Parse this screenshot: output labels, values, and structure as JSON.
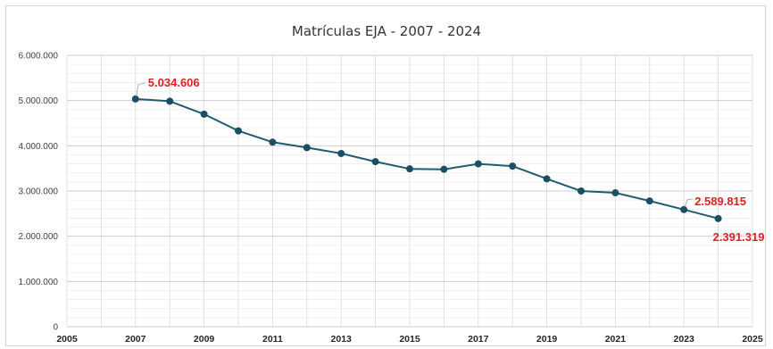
{
  "chart_data": {
    "type": "line",
    "title": "Matrículas EJA - 2007 - 2024",
    "xlabel": "",
    "ylabel": "",
    "xlim": [
      2005,
      2025
    ],
    "ylim": [
      0,
      6000000
    ],
    "x_ticks": [
      2005,
      2007,
      2009,
      2011,
      2013,
      2015,
      2017,
      2019,
      2021,
      2023,
      2025
    ],
    "x_tick_labels": [
      "2005",
      "2007",
      "2009",
      "2011",
      "2013",
      "2015",
      "2017",
      "2019",
      "2021",
      "2023",
      "2025"
    ],
    "y_ticks": [
      0,
      1000000,
      2000000,
      3000000,
      4000000,
      5000000,
      6000000
    ],
    "y_tick_labels": [
      "0",
      "1.000.000",
      "2.000.000",
      "3.000.000",
      "4.000.000",
      "5.000.000",
      "6.000.000"
    ],
    "grid": true,
    "legend": "none",
    "series": [
      {
        "color": "#1f5c73",
        "points": [
          {
            "x": 2007,
            "y": 5034606
          },
          {
            "x": 2008,
            "y": 4985000
          },
          {
            "x": 2009,
            "y": 4700000
          },
          {
            "x": 2010,
            "y": 4330000
          },
          {
            "x": 2011,
            "y": 4080000
          },
          {
            "x": 2012,
            "y": 3960000
          },
          {
            "x": 2013,
            "y": 3830000
          },
          {
            "x": 2014,
            "y": 3650000
          },
          {
            "x": 2015,
            "y": 3490000
          },
          {
            "x": 2016,
            "y": 3480000
          },
          {
            "x": 2017,
            "y": 3600000
          },
          {
            "x": 2018,
            "y": 3550000
          },
          {
            "x": 2019,
            "y": 3270000
          },
          {
            "x": 2020,
            "y": 3000000
          },
          {
            "x": 2021,
            "y": 2960000
          },
          {
            "x": 2022,
            "y": 2780000
          },
          {
            "x": 2023,
            "y": 2589815
          },
          {
            "x": 2024,
            "y": 2391319
          }
        ]
      }
    ],
    "data_labels": [
      {
        "x": 2007,
        "text": "5.034.606"
      },
      {
        "x": 2023,
        "text": "2.589.815"
      },
      {
        "x": 2024,
        "text": "2.391.319"
      }
    ],
    "colors": {
      "line": "#1f5c73",
      "marker": "#1b4f63",
      "data_label": "#e02020",
      "grid": "#d9d9d9"
    }
  }
}
